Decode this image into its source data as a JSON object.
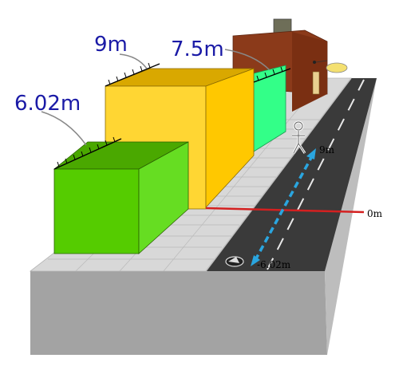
{
  "labels": {
    "height_front": "6.02m",
    "height_middle": "9m",
    "height_back": "7.5m",
    "road_top": "9m",
    "road_zero": "0m",
    "road_bottom": "-6.02m"
  },
  "colors": {
    "label_blue": "#1a1aa6",
    "zero_line": "#d42020",
    "arrow": "#2aa6e0",
    "road": "#3a3a3a",
    "pavement": "#d9d9d9",
    "block_green": "#5fd400",
    "block_yellow": "#ffcc00",
    "block_mint": "#33ff88",
    "house": "#8b3a1a"
  }
}
